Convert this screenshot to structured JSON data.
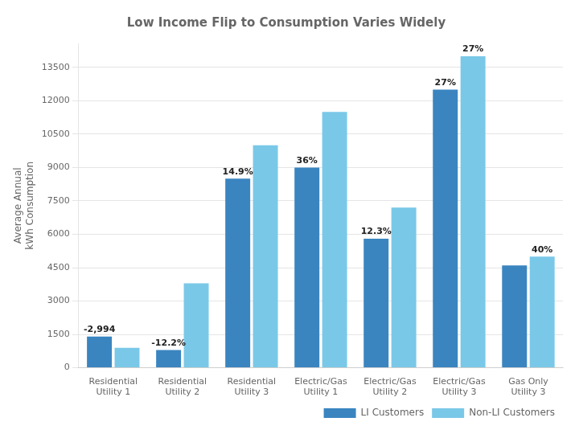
{
  "chart_data": {
    "type": "bar",
    "title": "Low Income Flip to Consumption Varies Widely",
    "y_label": "Average Annual\nkWh Consumption",
    "categories": [
      "Residential\nUtility 1",
      "Residential\nUtility 2",
      "Residential\nUtility 3",
      "Electric/Gas\nUtility 1",
      "Electric/Gas\nUtility 2",
      "Electric/Gas\nUtility 3",
      "Gas Only\nUtility 3"
    ],
    "series": [
      {
        "name": "LI Customers",
        "color": "#3A85C0",
        "values": [
          1400,
          800,
          8500,
          9000,
          5800,
          12500,
          4600
        ],
        "annotations": [
          "-2,994",
          "-12.2%",
          "14.9%",
          "36%",
          "12.3%",
          "27%",
          null
        ]
      },
      {
        "name": "Non-LI Customers",
        "color": "#7AC8E8",
        "values": [
          900,
          3800,
          10000,
          11500,
          7200,
          14000,
          5000
        ],
        "annotations": [
          null,
          null,
          null,
          null,
          null,
          "27%",
          "40%"
        ]
      }
    ],
    "ylim": [
      0,
      14580
    ],
    "yticks": [
      0,
      1500,
      3000,
      4500,
      6000,
      7500,
      9000,
      10500,
      12000,
      13500
    ],
    "grid": true,
    "legend": "lower right"
  }
}
